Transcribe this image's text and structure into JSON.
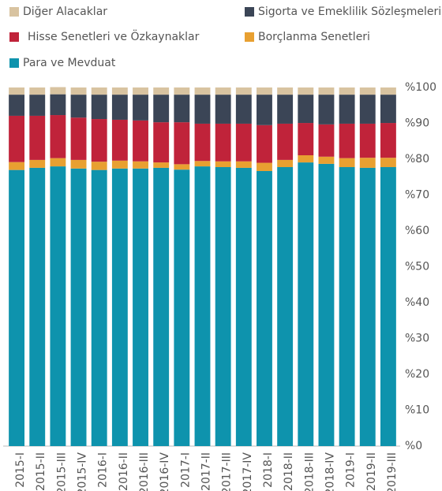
{
  "chart_data": {
    "type": "stacked_bar",
    "categories": [
      "2015-I",
      "2015-II",
      "2015-III",
      "2015-IV",
      "2016-I",
      "2016-II",
      "2016-III",
      "2016-IV",
      "2017-I",
      "2017-II",
      "2017-III",
      "2017-IV",
      "2018-I",
      "2018-II",
      "2018-III",
      "2018-IV",
      "2019-I",
      "2019-II",
      "2019-III"
    ],
    "series": [
      {
        "name": "Para ve Mevduat",
        "color": "#0e93ad",
        "values": [
          77.0,
          77.6,
          78.0,
          77.4,
          77.0,
          77.4,
          77.4,
          77.6,
          77.1,
          78.0,
          77.8,
          77.6,
          76.7,
          77.8,
          79.1,
          78.7,
          77.8,
          77.6,
          77.8
        ]
      },
      {
        "name": "Borçlanma Senetleri",
        "color": "#e8a031",
        "values": [
          2.2,
          2.2,
          2.3,
          2.4,
          2.3,
          2.2,
          2.0,
          1.5,
          1.5,
          1.5,
          1.6,
          1.8,
          2.3,
          2.0,
          2.0,
          2.0,
          2.5,
          2.8,
          2.6
        ]
      },
      {
        "name": "Hisse Senetleri ve Özkaynaklar",
        "color": "#c0233a",
        "values": [
          12.9,
          12.3,
          12.0,
          11.8,
          11.9,
          11.4,
          11.4,
          11.2,
          11.7,
          10.4,
          10.5,
          10.5,
          10.5,
          10.1,
          9.0,
          9.0,
          9.6,
          9.5,
          9.7
        ]
      },
      {
        "name": "Sigorta ve Emeklilik Sözleşmeleri",
        "color": "#3b4556",
        "values": [
          5.9,
          5.9,
          5.8,
          6.4,
          6.8,
          7.0,
          7.2,
          7.7,
          7.7,
          8.1,
          8.1,
          8.1,
          8.5,
          8.1,
          7.9,
          8.3,
          8.1,
          8.1,
          7.9
        ]
      },
      {
        "name": "Diğer Alacaklar",
        "color": "#d8c3a0",
        "values": [
          2.0,
          2.0,
          2.0,
          2.0,
          2.0,
          2.0,
          2.0,
          2.0,
          2.0,
          2.0,
          2.0,
          2.0,
          2.0,
          2.0,
          2.0,
          2.0,
          2.0,
          2.0,
          2.0
        ]
      }
    ],
    "ylim": [
      0,
      100
    ],
    "yticks": [
      {
        "value": 0,
        "label": "%0"
      },
      {
        "value": 10,
        "label": "%10"
      },
      {
        "value": 20,
        "label": "%20"
      },
      {
        "value": 30,
        "label": "%30"
      },
      {
        "value": 40,
        "label": "%40"
      },
      {
        "value": 50,
        "label": "%50"
      },
      {
        "value": 60,
        "label": "%60"
      },
      {
        "value": 70,
        "label": "%70"
      },
      {
        "value": 80,
        "label": "%80"
      },
      {
        "value": 90,
        "label": "%90"
      },
      {
        "value": 100,
        "label": "%100"
      }
    ],
    "grid": false
  }
}
